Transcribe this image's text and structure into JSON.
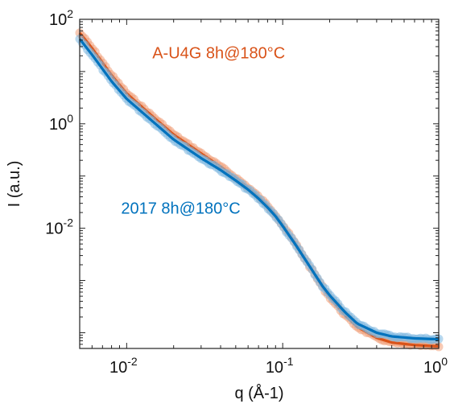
{
  "chart_data": {
    "type": "scatter",
    "xscale": "log",
    "yscale": "log",
    "xlim": [
      0.005,
      1
    ],
    "ylim": [
      5e-05,
      100
    ],
    "xlabel": "q (Å-1)",
    "ylabel": "I (a.u.)",
    "grid": false,
    "legend": "none",
    "x_ticks": [
      {
        "value": 0.01,
        "base": "10",
        "exp": "-2"
      },
      {
        "value": 0.1,
        "base": "10",
        "exp": "-1"
      },
      {
        "value": 1,
        "base": "10",
        "exp": "0"
      }
    ],
    "y_ticks": [
      {
        "value": 100,
        "base": "10",
        "exp": "2"
      },
      {
        "value": 1,
        "base": "10",
        "exp": "0"
      },
      {
        "value": 0.01,
        "base": "10",
        "exp": "-2"
      }
    ],
    "series": [
      {
        "name": "A-U4G 8h@180°C",
        "color": "#d95319",
        "marker_color": "#f0a07a",
        "x": [
          0.005,
          0.006,
          0.008,
          0.01,
          0.015,
          0.02,
          0.03,
          0.04,
          0.05,
          0.06,
          0.07,
          0.08,
          0.09,
          0.1,
          0.12,
          0.15,
          0.18,
          0.2,
          0.25,
          0.3,
          0.4,
          0.5,
          0.7,
          1.0
        ],
        "y": [
          55,
          28,
          8.5,
          3.8,
          1.3,
          0.62,
          0.27,
          0.15,
          0.092,
          0.06,
          0.04,
          0.027,
          0.018,
          0.0115,
          0.0052,
          0.0018,
          0.00075,
          0.00048,
          0.00022,
          0.00013,
          8e-05,
          6.5e-05,
          5.8e-05,
          5.5e-05
        ]
      },
      {
        "name": "2017 8h@180°C",
        "color": "#0072bd",
        "marker_color": "#7fb8e0",
        "x": [
          0.005,
          0.006,
          0.008,
          0.01,
          0.015,
          0.02,
          0.03,
          0.04,
          0.05,
          0.06,
          0.07,
          0.08,
          0.09,
          0.1,
          0.12,
          0.15,
          0.18,
          0.2,
          0.25,
          0.3,
          0.4,
          0.5,
          0.7,
          1.0
        ],
        "y": [
          42,
          21,
          6.5,
          3.0,
          1.05,
          0.5,
          0.22,
          0.13,
          0.082,
          0.055,
          0.037,
          0.025,
          0.017,
          0.011,
          0.005,
          0.0018,
          0.00078,
          0.00052,
          0.00025,
          0.00015,
          0.0001,
          8.5e-05,
          7.8e-05,
          7.5e-05
        ]
      }
    ],
    "annotations": [
      {
        "text": "A-U4G 8h@180°C",
        "color": "#d95319",
        "at": [
          0.0146,
          18
        ]
      },
      {
        "text": "2017 8h@180°C",
        "color": "#0072bd",
        "at": [
          0.0092,
          0.019
        ]
      }
    ]
  }
}
